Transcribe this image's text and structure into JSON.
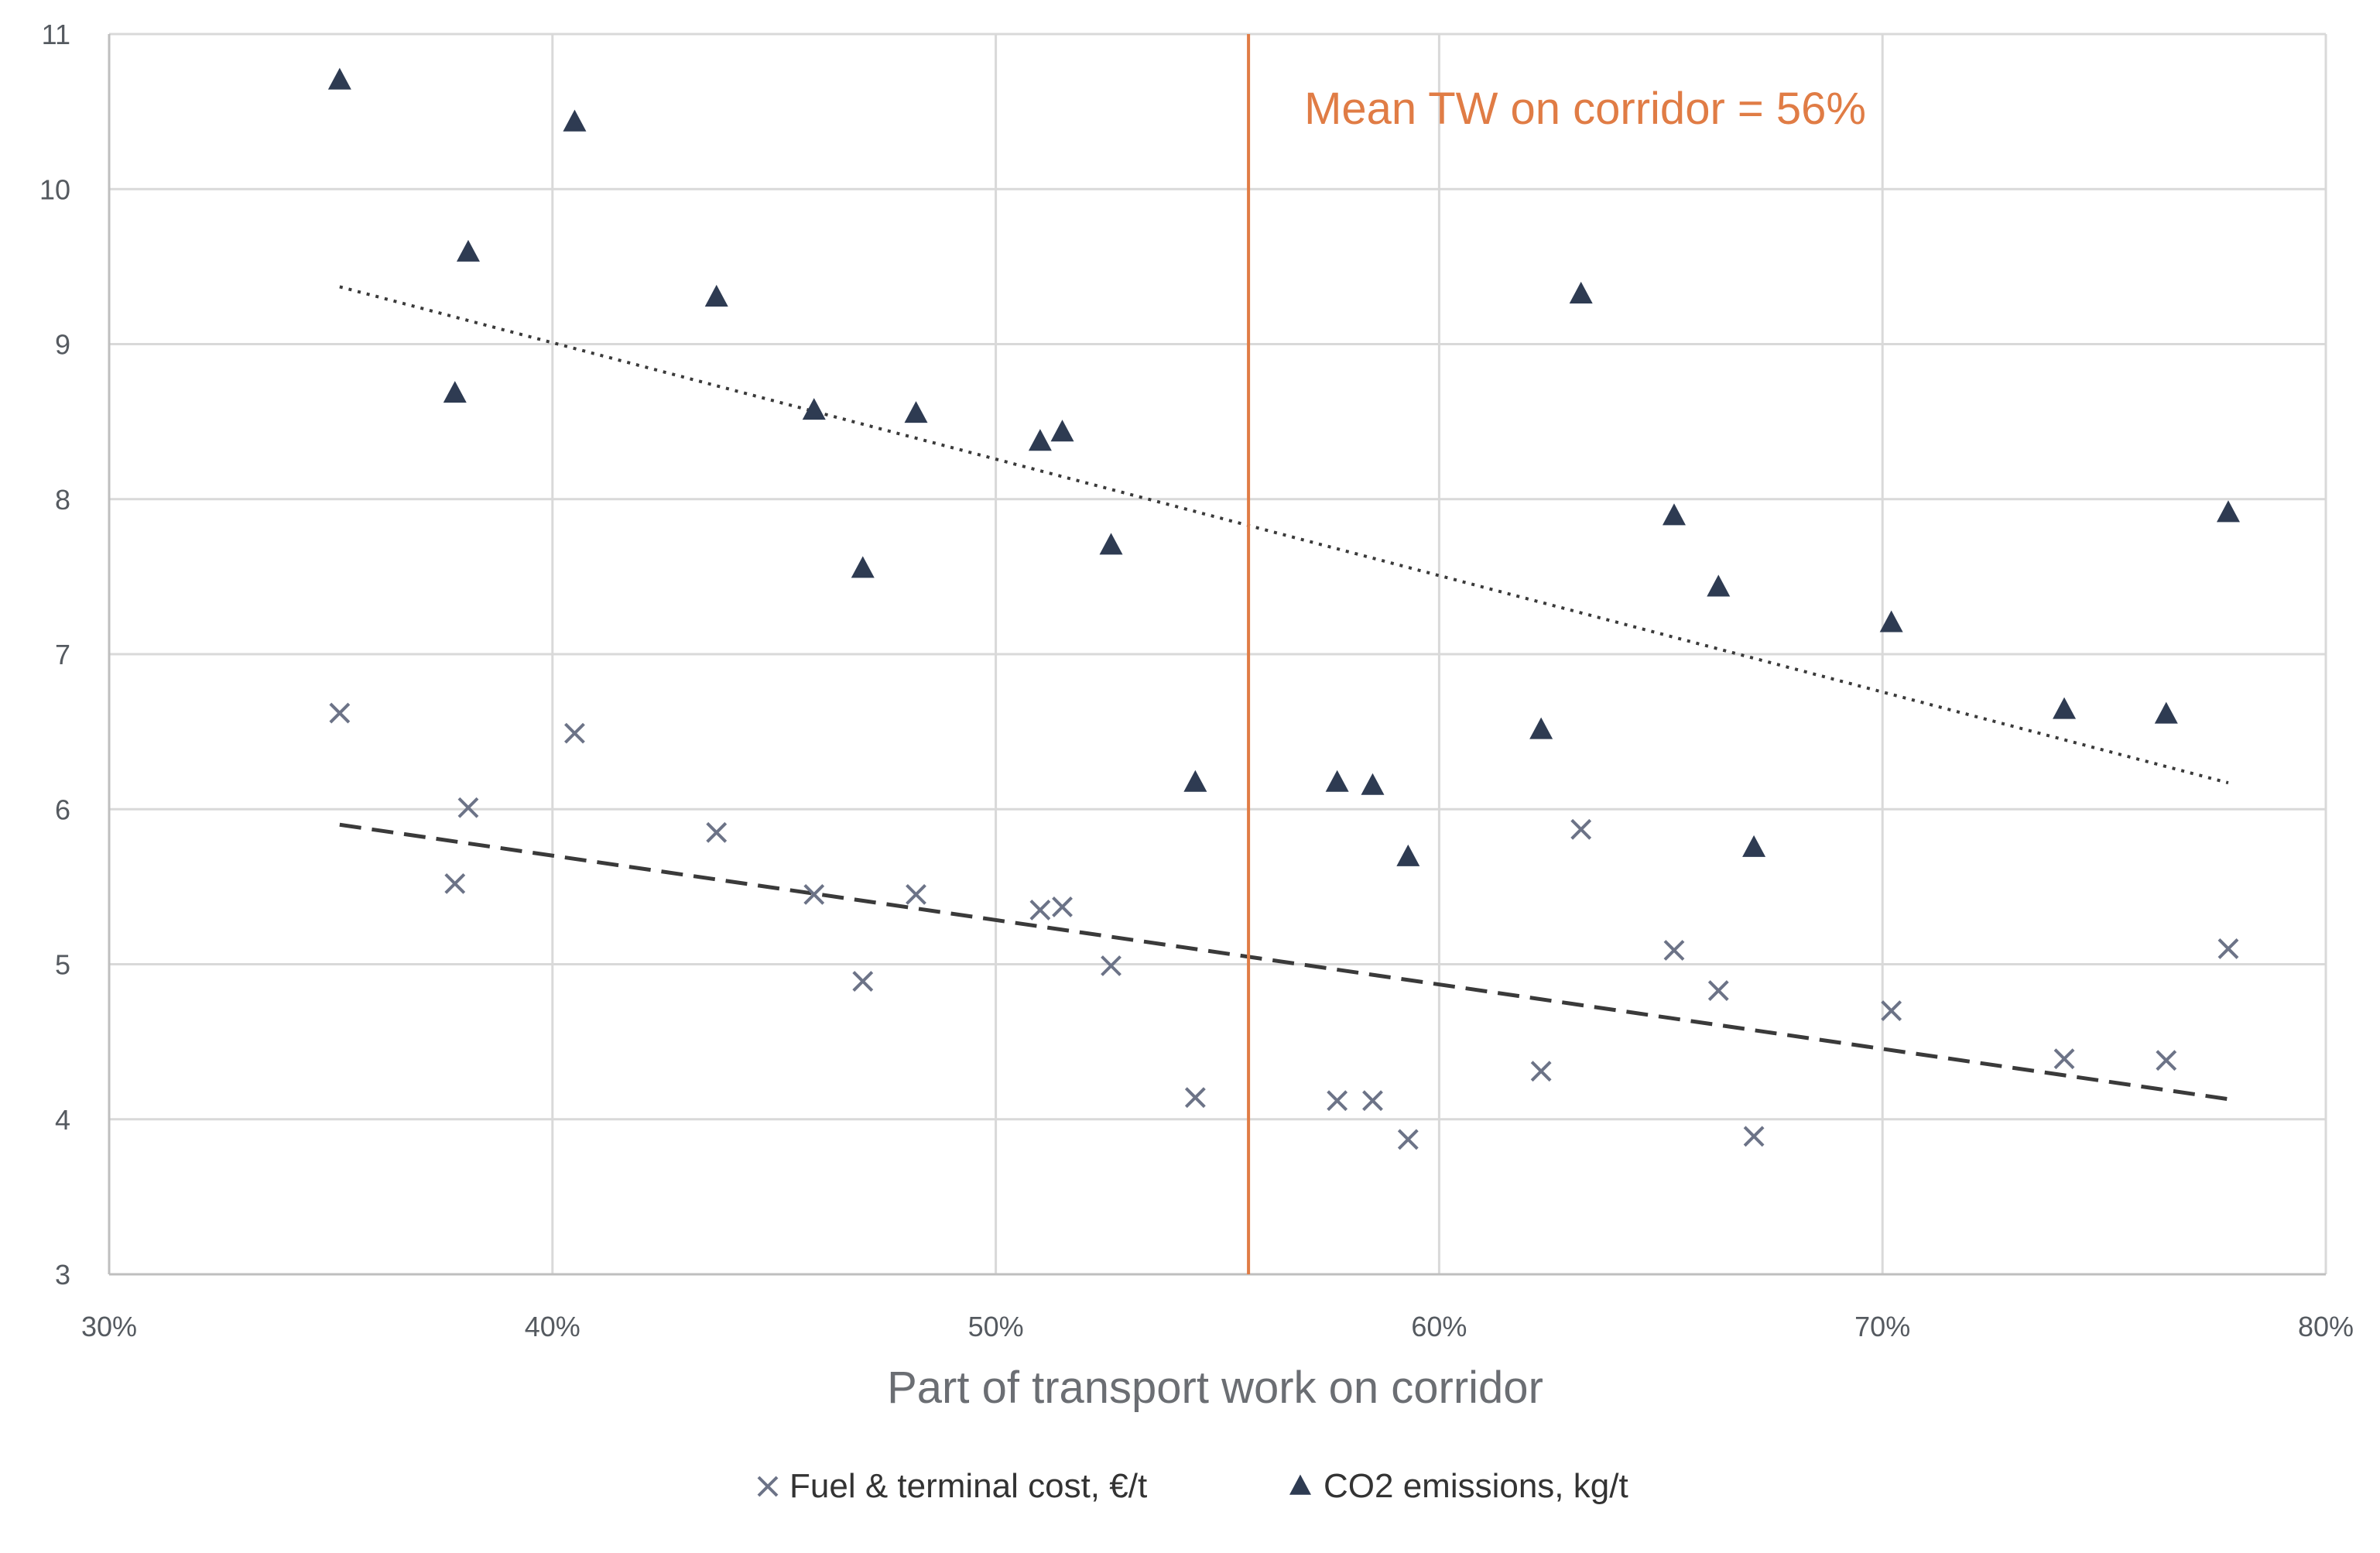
{
  "chart_data": {
    "type": "scatter",
    "xlabel": "Part of transport work on corridor",
    "ylabel": "",
    "xlim": [
      0.3,
      0.8
    ],
    "ylim": [
      3,
      11
    ],
    "x_ticks": [
      0.3,
      0.4,
      0.5,
      0.6,
      0.7,
      0.8
    ],
    "x_tick_labels": [
      "30%",
      "40%",
      "50%",
      "60%",
      "70%",
      "80%"
    ],
    "y_ticks": [
      3,
      4,
      5,
      6,
      7,
      8,
      9,
      10,
      11
    ],
    "y_tick_labels": [
      "3",
      "4",
      "5",
      "6",
      "7",
      "8",
      "9",
      "10",
      "11"
    ],
    "grid": true,
    "legend_position": "bottom",
    "series": [
      {
        "name": "Fuel & terminal cost, €/t",
        "marker": "x",
        "color": "#6c7387",
        "trendline": {
          "style": "dashed",
          "color": "#3a3a3a",
          "from": [
            0.352,
            5.9
          ],
          "to": [
            0.778,
            4.13
          ]
        },
        "points": [
          [
            0.352,
            6.62
          ],
          [
            0.378,
            5.52
          ],
          [
            0.381,
            6.01
          ],
          [
            0.405,
            6.49
          ],
          [
            0.437,
            5.85
          ],
          [
            0.459,
            5.45
          ],
          [
            0.47,
            4.89
          ],
          [
            0.482,
            5.45
          ],
          [
            0.51,
            5.35
          ],
          [
            0.515,
            5.37
          ],
          [
            0.526,
            4.99
          ],
          [
            0.545,
            4.14
          ],
          [
            0.577,
            4.12
          ],
          [
            0.585,
            4.12
          ],
          [
            0.593,
            3.87
          ],
          [
            0.623,
            4.31
          ],
          [
            0.632,
            5.87
          ],
          [
            0.653,
            5.09
          ],
          [
            0.663,
            4.83
          ],
          [
            0.671,
            3.89
          ],
          [
            0.702,
            4.7
          ],
          [
            0.741,
            4.39
          ],
          [
            0.764,
            4.38
          ],
          [
            0.778,
            5.1
          ]
        ]
      },
      {
        "name": "CO2 emissions, kg/t",
        "marker": "triangle",
        "color": "#2e3b52",
        "trendline": {
          "style": "dotted",
          "color": "#3a3a3a",
          "from": [
            0.352,
            9.37
          ],
          "to": [
            0.778,
            6.17
          ]
        },
        "points": [
          [
            0.352,
            10.7
          ],
          [
            0.378,
            8.68
          ],
          [
            0.381,
            9.59
          ],
          [
            0.405,
            10.43
          ],
          [
            0.437,
            9.3
          ],
          [
            0.459,
            8.57
          ],
          [
            0.47,
            7.55
          ],
          [
            0.482,
            8.55
          ],
          [
            0.51,
            8.37
          ],
          [
            0.515,
            8.43
          ],
          [
            0.526,
            7.7
          ],
          [
            0.545,
            6.17
          ],
          [
            0.577,
            6.17
          ],
          [
            0.585,
            6.15
          ],
          [
            0.593,
            5.69
          ],
          [
            0.623,
            6.51
          ],
          [
            0.632,
            9.32
          ],
          [
            0.653,
            7.89
          ],
          [
            0.663,
            7.43
          ],
          [
            0.671,
            5.75
          ],
          [
            0.702,
            7.2
          ],
          [
            0.741,
            6.64
          ],
          [
            0.764,
            6.61
          ],
          [
            0.778,
            7.91
          ]
        ]
      }
    ],
    "reference_line": {
      "x": 0.557,
      "label": "Mean TW on corridor = 56%",
      "color": "#e07c45"
    }
  }
}
